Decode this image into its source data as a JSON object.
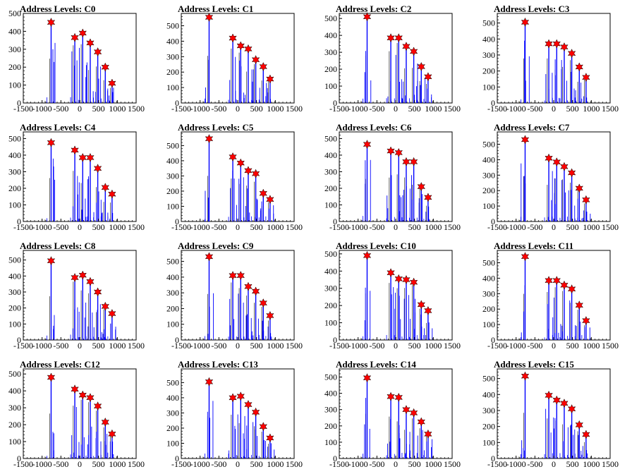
{
  "chart_data": [
    {
      "type": "bar",
      "title": "Address Levels: C0",
      "xlim": [
        -1500,
        1500
      ],
      "ylim": [
        0,
        500
      ],
      "yticks": [
        0,
        100,
        200,
        300,
        400,
        500
      ],
      "xticks": [
        -1500,
        -1000,
        -500,
        0,
        500,
        1000,
        1500
      ],
      "peaks": [
        {
          "x": -760,
          "y": 450
        },
        {
          "x": -130,
          "y": 365
        },
        {
          "x": 80,
          "y": 390
        },
        {
          "x": 280,
          "y": 335
        },
        {
          "x": 480,
          "y": 285
        },
        {
          "x": 680,
          "y": 200
        },
        {
          "x": 860,
          "y": 110
        }
      ],
      "bar_color": "#0000ff",
      "marker_color": "#ff0000"
    },
    {
      "type": "bar",
      "title": "Address Levels: C1",
      "xlim": [
        -1500,
        1500
      ],
      "ylim": [
        0,
        580
      ],
      "yticks": [
        0,
        100,
        200,
        300,
        400,
        500
      ],
      "xticks": [
        -1500,
        -1000,
        -500,
        0,
        500,
        1000,
        1500
      ],
      "peaks": [
        {
          "x": -760,
          "y": 555
        },
        {
          "x": -130,
          "y": 420
        },
        {
          "x": 80,
          "y": 370
        },
        {
          "x": 280,
          "y": 350
        },
        {
          "x": 480,
          "y": 280
        },
        {
          "x": 680,
          "y": 235
        },
        {
          "x": 860,
          "y": 155
        }
      ],
      "bar_color": "#0000ff",
      "marker_color": "#ff0000"
    },
    {
      "type": "bar",
      "title": "Address Levels: C2",
      "xlim": [
        -1500,
        1500
      ],
      "ylim": [
        0,
        530
      ],
      "yticks": [
        0,
        100,
        200,
        300,
        400,
        500
      ],
      "xticks": [
        -1500,
        -1000,
        -500,
        0,
        500,
        1000,
        1500
      ],
      "peaks": [
        {
          "x": -760,
          "y": 510
        },
        {
          "x": -130,
          "y": 385
        },
        {
          "x": 80,
          "y": 385
        },
        {
          "x": 280,
          "y": 335
        },
        {
          "x": 480,
          "y": 305
        },
        {
          "x": 680,
          "y": 215
        },
        {
          "x": 860,
          "y": 155
        }
      ],
      "bar_color": "#0000ff",
      "marker_color": "#ff0000"
    },
    {
      "type": "bar",
      "title": "Address Levels: C3",
      "xlim": [
        -1500,
        1500
      ],
      "ylim": [
        0,
        560
      ],
      "yticks": [
        0,
        100,
        200,
        300,
        400,
        500
      ],
      "xticks": [
        -1500,
        -1000,
        -500,
        0,
        500,
        1000,
        1500
      ],
      "peaks": [
        {
          "x": -760,
          "y": 505
        },
        {
          "x": -130,
          "y": 370
        },
        {
          "x": 80,
          "y": 370
        },
        {
          "x": 280,
          "y": 350
        },
        {
          "x": 480,
          "y": 310
        },
        {
          "x": 680,
          "y": 225
        },
        {
          "x": 860,
          "y": 160
        }
      ],
      "bar_color": "#0000ff",
      "marker_color": "#ff0000"
    },
    {
      "type": "bar",
      "title": "Address Levels: C4",
      "xlim": [
        -1500,
        1500
      ],
      "ylim": [
        0,
        540
      ],
      "yticks": [
        0,
        100,
        200,
        300,
        400,
        500
      ],
      "xticks": [
        -1500,
        -1000,
        -500,
        0,
        500,
        1000,
        1500
      ],
      "peaks": [
        {
          "x": -760,
          "y": 475
        },
        {
          "x": -130,
          "y": 430
        },
        {
          "x": 80,
          "y": 385
        },
        {
          "x": 280,
          "y": 385
        },
        {
          "x": 480,
          "y": 320
        },
        {
          "x": 680,
          "y": 205
        },
        {
          "x": 860,
          "y": 165
        }
      ],
      "bar_color": "#0000ff",
      "marker_color": "#ff0000"
    },
    {
      "type": "bar",
      "title": "Address Levels: C5",
      "xlim": [
        -1500,
        1500
      ],
      "ylim": [
        0,
        590
      ],
      "yticks": [
        0,
        100,
        200,
        300,
        400,
        500
      ],
      "xticks": [
        -1500,
        -1000,
        -500,
        0,
        500,
        1000,
        1500
      ],
      "peaks": [
        {
          "x": -760,
          "y": 545
        },
        {
          "x": -130,
          "y": 425
        },
        {
          "x": 80,
          "y": 385
        },
        {
          "x": 280,
          "y": 335
        },
        {
          "x": 480,
          "y": 315
        },
        {
          "x": 680,
          "y": 185
        },
        {
          "x": 860,
          "y": 145
        }
      ],
      "bar_color": "#0000ff",
      "marker_color": "#ff0000"
    },
    {
      "type": "bar",
      "title": "Address Levels: C6",
      "xlim": [
        -1500,
        1500
      ],
      "ylim": [
        0,
        540
      ],
      "yticks": [
        0,
        100,
        200,
        300,
        400,
        500
      ],
      "xticks": [
        -1500,
        -1000,
        -500,
        0,
        500,
        1000,
        1500
      ],
      "peaks": [
        {
          "x": -760,
          "y": 465
        },
        {
          "x": -130,
          "y": 425
        },
        {
          "x": 80,
          "y": 415
        },
        {
          "x": 280,
          "y": 360
        },
        {
          "x": 480,
          "y": 360
        },
        {
          "x": 680,
          "y": 210
        },
        {
          "x": 860,
          "y": 145
        }
      ],
      "bar_color": "#0000ff",
      "marker_color": "#ff0000"
    },
    {
      "type": "bar",
      "title": "Address Levels: C7",
      "xlim": [
        -1500,
        1500
      ],
      "ylim": [
        0,
        580
      ],
      "yticks": [
        0,
        100,
        200,
        300,
        400,
        500
      ],
      "xticks": [
        -1500,
        -1000,
        -500,
        0,
        500,
        1000,
        1500
      ],
      "peaks": [
        {
          "x": -760,
          "y": 530
        },
        {
          "x": -130,
          "y": 410
        },
        {
          "x": 80,
          "y": 385
        },
        {
          "x": 280,
          "y": 355
        },
        {
          "x": 480,
          "y": 315
        },
        {
          "x": 680,
          "y": 215
        },
        {
          "x": 860,
          "y": 140
        }
      ],
      "bar_color": "#0000ff",
      "marker_color": "#ff0000"
    },
    {
      "type": "bar",
      "title": "Address Levels: C8",
      "xlim": [
        -1500,
        1500
      ],
      "ylim": [
        0,
        560
      ],
      "yticks": [
        0,
        100,
        200,
        300,
        400,
        500
      ],
      "xticks": [
        -1500,
        -1000,
        -500,
        0,
        500,
        1000,
        1500
      ],
      "peaks": [
        {
          "x": -760,
          "y": 495
        },
        {
          "x": -130,
          "y": 390
        },
        {
          "x": 80,
          "y": 405
        },
        {
          "x": 280,
          "y": 365
        },
        {
          "x": 480,
          "y": 300
        },
        {
          "x": 680,
          "y": 210
        },
        {
          "x": 860,
          "y": 165
        }
      ],
      "bar_color": "#0000ff",
      "marker_color": "#ff0000"
    },
    {
      "type": "bar",
      "title": "Address Levels: C9",
      "xlim": [
        -1500,
        1500
      ],
      "ylim": [
        0,
        570
      ],
      "yticks": [
        0,
        100,
        200,
        300,
        400,
        500
      ],
      "xticks": [
        -1500,
        -1000,
        -500,
        0,
        500,
        1000,
        1500
      ],
      "peaks": [
        {
          "x": -760,
          "y": 530
        },
        {
          "x": -130,
          "y": 410
        },
        {
          "x": 80,
          "y": 410
        },
        {
          "x": 280,
          "y": 340
        },
        {
          "x": 480,
          "y": 310
        },
        {
          "x": 680,
          "y": 235
        },
        {
          "x": 860,
          "y": 155
        }
      ],
      "bar_color": "#0000ff",
      "marker_color": "#ff0000"
    },
    {
      "type": "bar",
      "title": "Address Levels: C10",
      "xlim": [
        -1500,
        1500
      ],
      "ylim": [
        0,
        520
      ],
      "yticks": [
        0,
        100,
        200,
        300,
        400,
        500
      ],
      "xticks": [
        -1500,
        -1000,
        -500,
        0,
        500,
        1000,
        1500
      ],
      "peaks": [
        {
          "x": -760,
          "y": 490
        },
        {
          "x": -130,
          "y": 390
        },
        {
          "x": 80,
          "y": 355
        },
        {
          "x": 280,
          "y": 350
        },
        {
          "x": 480,
          "y": 335
        },
        {
          "x": 680,
          "y": 205
        },
        {
          "x": 860,
          "y": 170
        }
      ],
      "bar_color": "#0000ff",
      "marker_color": "#ff0000"
    },
    {
      "type": "bar",
      "title": "Address Levels: C11",
      "xlim": [
        -1500,
        1500
      ],
      "ylim": [
        0,
        580
      ],
      "yticks": [
        0,
        100,
        200,
        300,
        400,
        500
      ],
      "xticks": [
        -1500,
        -1000,
        -500,
        0,
        500,
        1000,
        1500
      ],
      "peaks": [
        {
          "x": -760,
          "y": 540
        },
        {
          "x": -130,
          "y": 385
        },
        {
          "x": 80,
          "y": 385
        },
        {
          "x": 280,
          "y": 355
        },
        {
          "x": 480,
          "y": 330
        },
        {
          "x": 680,
          "y": 225
        },
        {
          "x": 860,
          "y": 125
        }
      ],
      "bar_color": "#0000ff",
      "marker_color": "#ff0000"
    },
    {
      "type": "bar",
      "title": "Address Levels: C12",
      "xlim": [
        -1500,
        1500
      ],
      "ylim": [
        0,
        530
      ],
      "yticks": [
        0,
        100,
        200,
        300,
        400,
        500
      ],
      "xticks": [
        -1500,
        -1000,
        -500,
        0,
        500,
        1000,
        1500
      ],
      "peaks": [
        {
          "x": -760,
          "y": 480
        },
        {
          "x": -130,
          "y": 410
        },
        {
          "x": 80,
          "y": 375
        },
        {
          "x": 280,
          "y": 360
        },
        {
          "x": 480,
          "y": 310
        },
        {
          "x": 680,
          "y": 215
        },
        {
          "x": 860,
          "y": 145
        }
      ],
      "bar_color": "#0000ff",
      "marker_color": "#ff0000"
    },
    {
      "type": "bar",
      "title": "Address Levels: C13",
      "xlim": [
        -1500,
        1500
      ],
      "ylim": [
        0,
        590
      ],
      "yticks": [
        0,
        100,
        200,
        300,
        400,
        500
      ],
      "xticks": [
        -1500,
        -1000,
        -500,
        0,
        500,
        1000,
        1500
      ],
      "peaks": [
        {
          "x": -760,
          "y": 505
        },
        {
          "x": -130,
          "y": 400
        },
        {
          "x": 80,
          "y": 410
        },
        {
          "x": 280,
          "y": 355
        },
        {
          "x": 480,
          "y": 305
        },
        {
          "x": 680,
          "y": 210
        },
        {
          "x": 860,
          "y": 135
        }
      ],
      "bar_color": "#0000ff",
      "marker_color": "#ff0000"
    },
    {
      "type": "bar",
      "title": "Address Levels: C14",
      "xlim": [
        -1500,
        1500
      ],
      "ylim": [
        0,
        550
      ],
      "yticks": [
        0,
        100,
        200,
        300,
        400,
        500
      ],
      "xticks": [
        -1500,
        -1000,
        -500,
        0,
        500,
        1000,
        1500
      ],
      "peaks": [
        {
          "x": -760,
          "y": 495
        },
        {
          "x": -130,
          "y": 380
        },
        {
          "x": 80,
          "y": 375
        },
        {
          "x": 280,
          "y": 300
        },
        {
          "x": 480,
          "y": 280
        },
        {
          "x": 680,
          "y": 225
        },
        {
          "x": 860,
          "y": 150
        }
      ],
      "bar_color": "#0000ff",
      "marker_color": "#ff0000"
    },
    {
      "type": "bar",
      "title": "Address Levels: C15",
      "xlim": [
        -1500,
        1500
      ],
      "ylim": [
        0,
        560
      ],
      "yticks": [
        0,
        100,
        200,
        300,
        400,
        500
      ],
      "xticks": [
        -1500,
        -1000,
        -500,
        0,
        500,
        1000,
        1500
      ],
      "peaks": [
        {
          "x": -760,
          "y": 515
        },
        {
          "x": -130,
          "y": 395
        },
        {
          "x": 80,
          "y": 365
        },
        {
          "x": 280,
          "y": 345
        },
        {
          "x": 480,
          "y": 310
        },
        {
          "x": 680,
          "y": 210
        },
        {
          "x": 860,
          "y": 150
        }
      ],
      "bar_color": "#0000ff",
      "marker_color": "#ff0000"
    }
  ]
}
